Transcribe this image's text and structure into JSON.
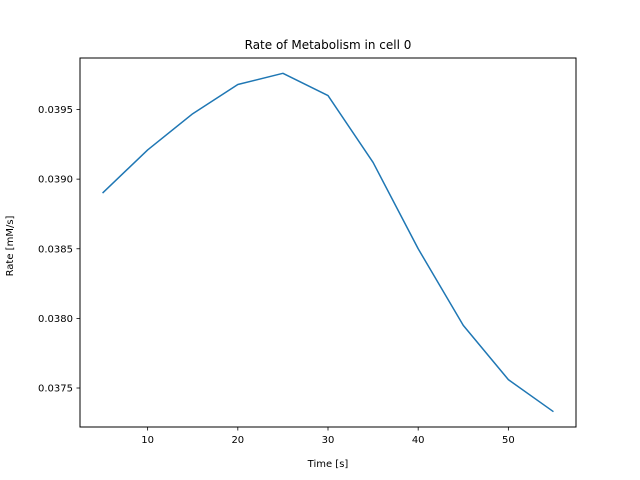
{
  "chart_data": {
    "type": "line",
    "title": "Rate of Metabolism in cell 0",
    "xlabel": "Time [s]",
    "ylabel": "Rate [mM/s]",
    "xlim": [
      2.5,
      57.5
    ],
    "ylim": [
      0.03722,
      0.03987
    ],
    "xticks": [
      10,
      20,
      30,
      40,
      50
    ],
    "xtick_labels": [
      "10",
      "20",
      "30",
      "40",
      "50"
    ],
    "yticks": [
      0.0375,
      0.038,
      0.0385,
      0.039,
      0.0395
    ],
    "ytick_labels": [
      "0.0375",
      "0.0380",
      "0.0385",
      "0.0390",
      "0.0395"
    ],
    "grid": false,
    "series": [
      {
        "color": "#1f77b4",
        "x": [
          5,
          10,
          15,
          20,
          25,
          30,
          35,
          40,
          45,
          50,
          55
        ],
        "y": [
          0.0389,
          0.03921,
          0.03947,
          0.03968,
          0.03976,
          0.0396,
          0.03912,
          0.0385,
          0.03795,
          0.03756,
          0.03733
        ]
      }
    ]
  }
}
